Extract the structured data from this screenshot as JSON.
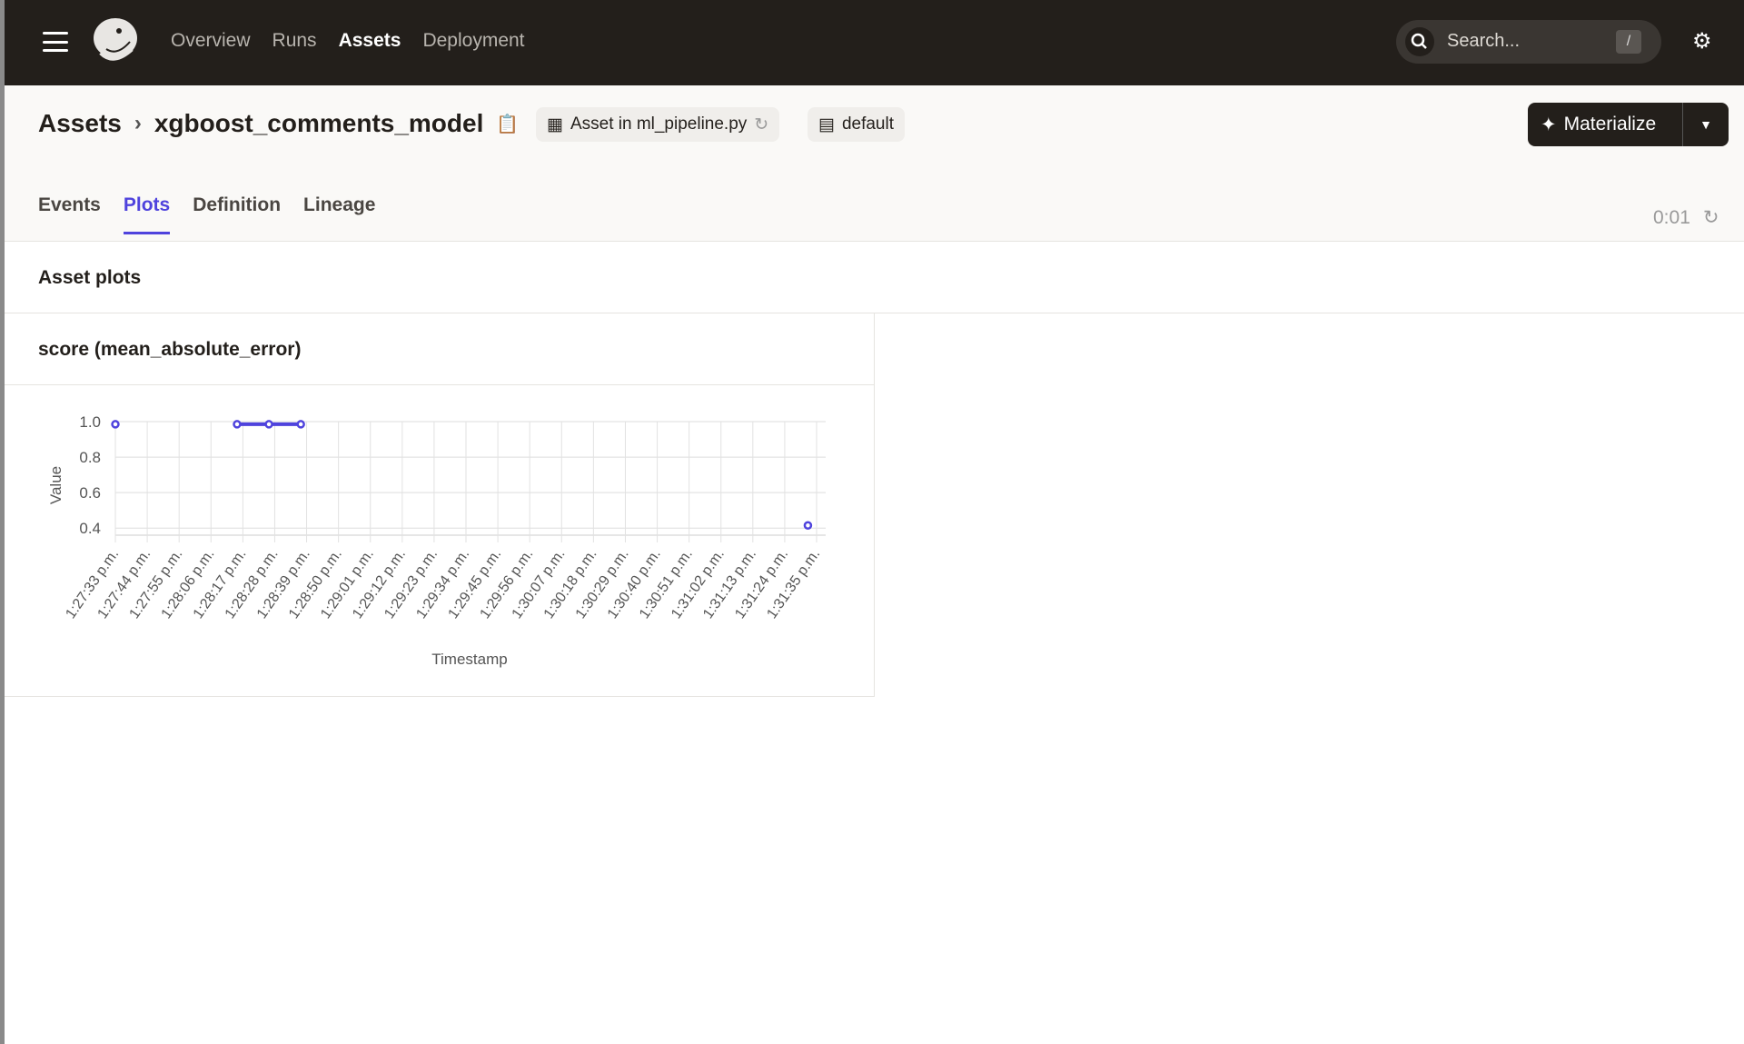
{
  "topbar": {
    "nav": [
      "Overview",
      "Runs",
      "Assets",
      "Deployment"
    ],
    "active": "Assets",
    "search_placeholder": "Search...",
    "search_shortcut": "/"
  },
  "header": {
    "breadcrumb_root": "Assets",
    "asset_name": "xgboost_comments_model",
    "code_location": "Asset in ml_pipeline.py",
    "group": "default",
    "materialize_label": "Materialize"
  },
  "tabs": [
    "Events",
    "Plots",
    "Definition",
    "Lineage"
  ],
  "active_tab": "Plots",
  "refresh_timer": "0:01",
  "section_title": "Asset plots",
  "card_title": "score (mean_absolute_error)",
  "colors": {
    "accent": "#4f43dd",
    "topbar": "#231f1b"
  },
  "chart_data": {
    "type": "line",
    "xlabel": "Timestamp",
    "ylabel": "Value",
    "ylim": [
      0.36,
      1.0
    ],
    "yticks": [
      0.4,
      0.6,
      0.8,
      1.0
    ],
    "grid": true,
    "xticks": [
      "1:27:33 p.m.",
      "1:27:44 p.m.",
      "1:27:55 p.m.",
      "1:28:06 p.m.",
      "1:28:17 p.m.",
      "1:28:28 p.m.",
      "1:28:39 p.m.",
      "1:28:50 p.m.",
      "1:29:01 p.m.",
      "1:29:12 p.m.",
      "1:29:23 p.m.",
      "1:29:34 p.m.",
      "1:29:45 p.m.",
      "1:29:56 p.m.",
      "1:30:07 p.m.",
      "1:30:18 p.m.",
      "1:30:29 p.m.",
      "1:30:40 p.m.",
      "1:30:51 p.m.",
      "1:31:02 p.m.",
      "1:31:13 p.m.",
      "1:31:24 p.m.",
      "1:31:35 p.m."
    ],
    "segments": [
      [
        {
          "x": "1:27:33 p.m.",
          "y": 0.985
        }
      ],
      [
        {
          "x": "1:28:15 p.m.",
          "y": 0.985
        },
        {
          "x": "1:28:26 p.m.",
          "y": 0.985
        },
        {
          "x": "1:28:37 p.m.",
          "y": 0.985
        }
      ],
      [
        {
          "x": "1:31:32 p.m.",
          "y": 0.415
        }
      ]
    ]
  }
}
